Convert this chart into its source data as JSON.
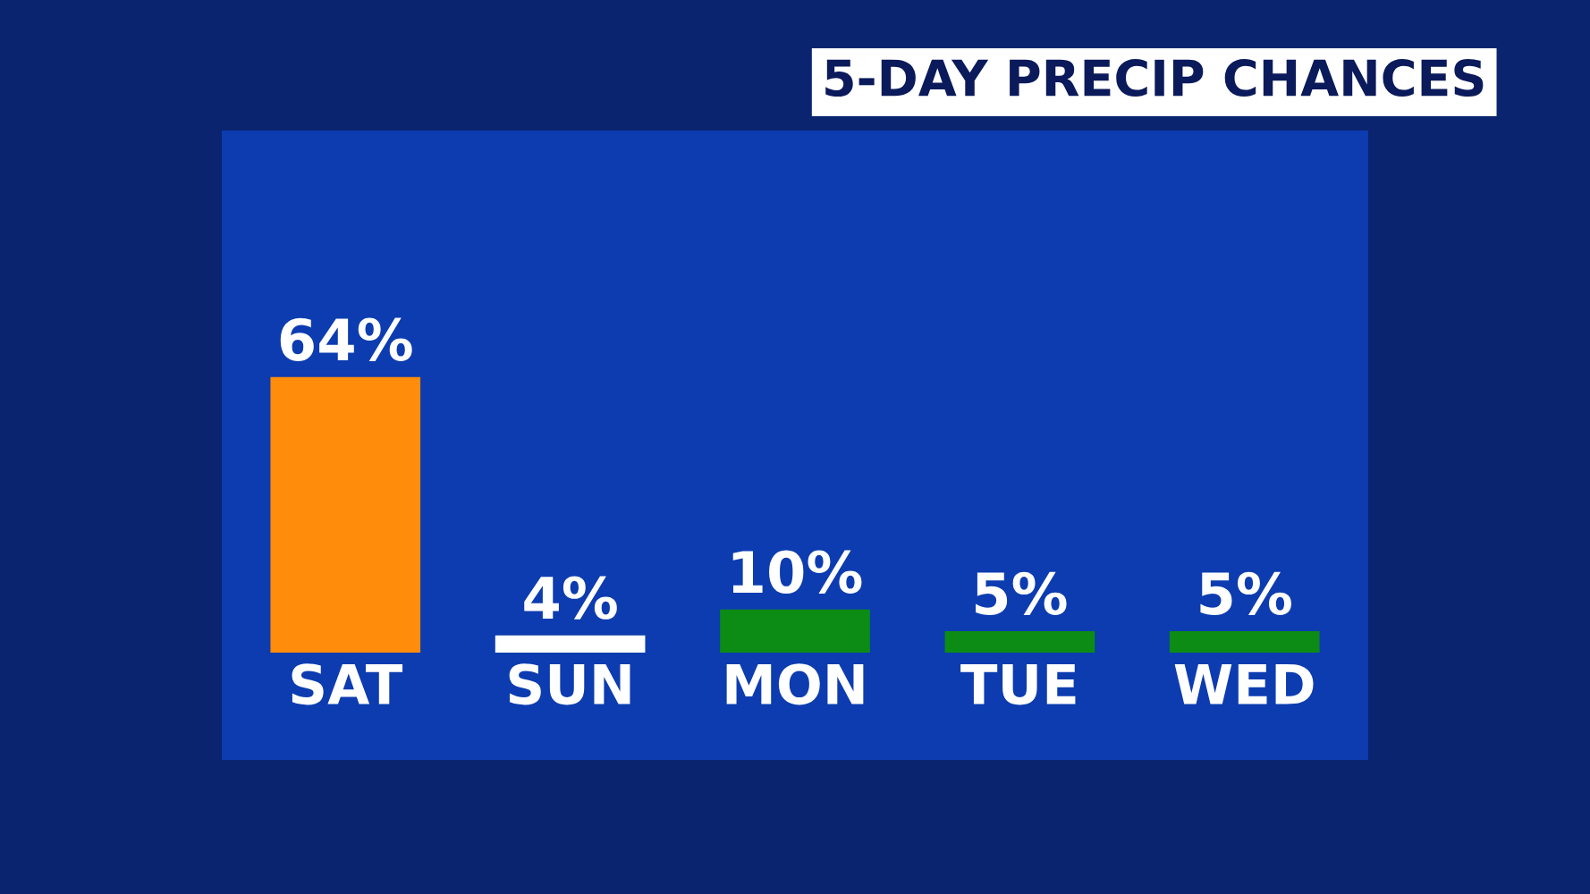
{
  "chart_data": {
    "type": "bar",
    "title": "5-DAY PRECIP CHANCES",
    "categories": [
      "SAT",
      "SUN",
      "MON",
      "TUE",
      "WED"
    ],
    "values": [
      64,
      4,
      10,
      5,
      5
    ],
    "colors": [
      "#ff8c0a",
      "#ffffff",
      "#0c8c14",
      "#0c8c14",
      "#0c8c14"
    ],
    "value_labels": [
      "64%",
      "4%",
      "10%",
      "5%",
      "5%"
    ],
    "grid": false,
    "legend": false
  }
}
